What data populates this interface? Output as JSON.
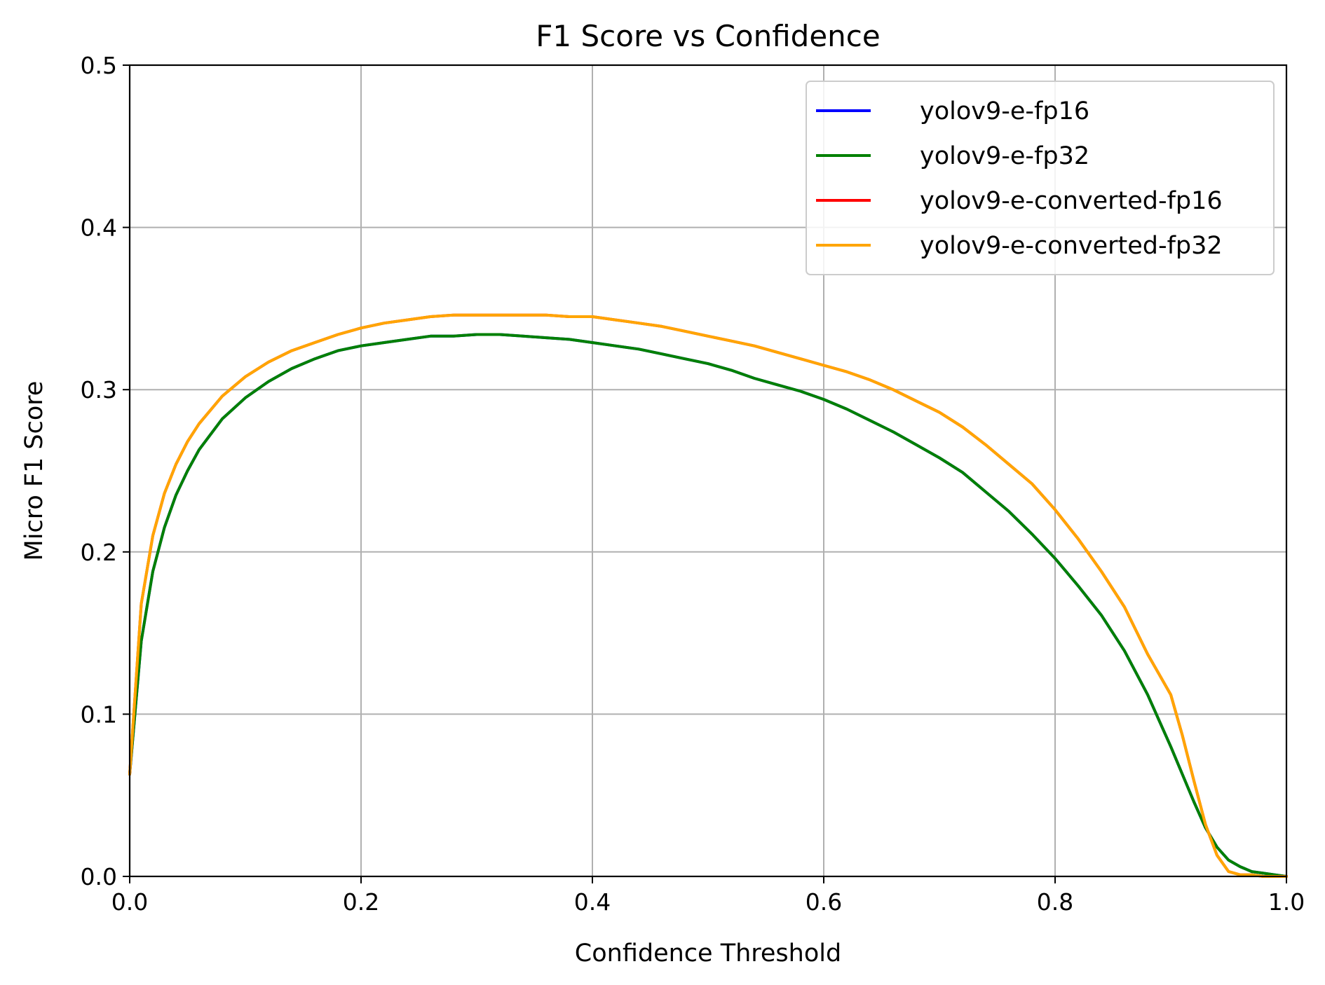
{
  "chart_data": {
    "type": "line",
    "title": "F1 Score vs Confidence",
    "xlabel": "Confidence Threshold",
    "ylabel": "Micro F1 Score",
    "xlim": [
      0.0,
      1.0
    ],
    "ylim": [
      0.0,
      0.5
    ],
    "x_ticks": [
      "0.0",
      "0.2",
      "0.4",
      "0.6",
      "0.8",
      "1.0"
    ],
    "y_ticks": [
      "0.0",
      "0.1",
      "0.2",
      "0.3",
      "0.4",
      "0.5"
    ],
    "grid": true,
    "legend_position": "top-right",
    "series": [
      {
        "name": "yolov9-e-fp16",
        "color": "#0000ff",
        "x": [
          0.0,
          0.01,
          0.02,
          0.03,
          0.04,
          0.05,
          0.06,
          0.08,
          0.1,
          0.12,
          0.14,
          0.16,
          0.18,
          0.2,
          0.22,
          0.24,
          0.26,
          0.28,
          0.3,
          0.32,
          0.34,
          0.36,
          0.38,
          0.4,
          0.42,
          0.44,
          0.46,
          0.48,
          0.5,
          0.52,
          0.54,
          0.56,
          0.58,
          0.6,
          0.62,
          0.64,
          0.66,
          0.68,
          0.7,
          0.72,
          0.74,
          0.76,
          0.78,
          0.8,
          0.82,
          0.84,
          0.86,
          0.88,
          0.9,
          0.91,
          0.92,
          0.93,
          0.94,
          0.95,
          0.96,
          0.97,
          0.98,
          0.99,
          1.0
        ],
        "y": [
          0.063,
          0.145,
          0.188,
          0.215,
          0.235,
          0.25,
          0.263,
          0.282,
          0.295,
          0.305,
          0.313,
          0.319,
          0.324,
          0.327,
          0.329,
          0.331,
          0.333,
          0.333,
          0.334,
          0.334,
          0.333,
          0.332,
          0.331,
          0.329,
          0.327,
          0.325,
          0.322,
          0.319,
          0.316,
          0.312,
          0.307,
          0.303,
          0.299,
          0.294,
          0.288,
          0.281,
          0.274,
          0.266,
          0.258,
          0.249,
          0.237,
          0.225,
          0.211,
          0.196,
          0.179,
          0.161,
          0.139,
          0.112,
          0.08,
          0.063,
          0.046,
          0.03,
          0.018,
          0.01,
          0.006,
          0.003,
          0.002,
          0.001,
          0.0
        ]
      },
      {
        "name": "yolov9-e-fp32",
        "color": "#008000",
        "x": [
          0.0,
          0.01,
          0.02,
          0.03,
          0.04,
          0.05,
          0.06,
          0.08,
          0.1,
          0.12,
          0.14,
          0.16,
          0.18,
          0.2,
          0.22,
          0.24,
          0.26,
          0.28,
          0.3,
          0.32,
          0.34,
          0.36,
          0.38,
          0.4,
          0.42,
          0.44,
          0.46,
          0.48,
          0.5,
          0.52,
          0.54,
          0.56,
          0.58,
          0.6,
          0.62,
          0.64,
          0.66,
          0.68,
          0.7,
          0.72,
          0.74,
          0.76,
          0.78,
          0.8,
          0.82,
          0.84,
          0.86,
          0.88,
          0.9,
          0.91,
          0.92,
          0.93,
          0.94,
          0.95,
          0.96,
          0.97,
          0.98,
          0.99,
          1.0
        ],
        "y": [
          0.063,
          0.145,
          0.188,
          0.215,
          0.235,
          0.25,
          0.263,
          0.282,
          0.295,
          0.305,
          0.313,
          0.319,
          0.324,
          0.327,
          0.329,
          0.331,
          0.333,
          0.333,
          0.334,
          0.334,
          0.333,
          0.332,
          0.331,
          0.329,
          0.327,
          0.325,
          0.322,
          0.319,
          0.316,
          0.312,
          0.307,
          0.303,
          0.299,
          0.294,
          0.288,
          0.281,
          0.274,
          0.266,
          0.258,
          0.249,
          0.237,
          0.225,
          0.211,
          0.196,
          0.179,
          0.161,
          0.139,
          0.112,
          0.08,
          0.063,
          0.046,
          0.03,
          0.018,
          0.01,
          0.006,
          0.003,
          0.002,
          0.001,
          0.0
        ]
      },
      {
        "name": "yolov9-e-converted-fp16",
        "color": "#ff0000",
        "x": [
          0.0,
          0.01,
          0.02,
          0.03,
          0.04,
          0.05,
          0.06,
          0.08,
          0.1,
          0.12,
          0.14,
          0.16,
          0.18,
          0.2,
          0.22,
          0.24,
          0.26,
          0.28,
          0.3,
          0.32,
          0.34,
          0.36,
          0.38,
          0.4,
          0.42,
          0.44,
          0.46,
          0.48,
          0.5,
          0.52,
          0.54,
          0.56,
          0.58,
          0.6,
          0.62,
          0.64,
          0.66,
          0.68,
          0.7,
          0.72,
          0.74,
          0.76,
          0.78,
          0.8,
          0.82,
          0.84,
          0.86,
          0.88,
          0.9,
          0.91,
          0.92,
          0.93,
          0.94,
          0.95,
          0.96,
          0.97,
          0.98,
          0.99,
          1.0
        ],
        "y": [
          0.063,
          0.168,
          0.21,
          0.236,
          0.254,
          0.268,
          0.279,
          0.296,
          0.308,
          0.317,
          0.324,
          0.329,
          0.334,
          0.338,
          0.341,
          0.343,
          0.345,
          0.346,
          0.346,
          0.346,
          0.346,
          0.346,
          0.345,
          0.345,
          0.343,
          0.341,
          0.339,
          0.336,
          0.333,
          0.33,
          0.327,
          0.323,
          0.319,
          0.315,
          0.311,
          0.306,
          0.3,
          0.293,
          0.286,
          0.277,
          0.266,
          0.254,
          0.242,
          0.226,
          0.208,
          0.188,
          0.166,
          0.137,
          0.112,
          0.087,
          0.059,
          0.032,
          0.013,
          0.003,
          0.001,
          0.001,
          0.0,
          0.0,
          0.0
        ]
      },
      {
        "name": "yolov9-e-converted-fp32",
        "color": "#ffa500",
        "x": [
          0.0,
          0.01,
          0.02,
          0.03,
          0.04,
          0.05,
          0.06,
          0.08,
          0.1,
          0.12,
          0.14,
          0.16,
          0.18,
          0.2,
          0.22,
          0.24,
          0.26,
          0.28,
          0.3,
          0.32,
          0.34,
          0.36,
          0.38,
          0.4,
          0.42,
          0.44,
          0.46,
          0.48,
          0.5,
          0.52,
          0.54,
          0.56,
          0.58,
          0.6,
          0.62,
          0.64,
          0.66,
          0.68,
          0.7,
          0.72,
          0.74,
          0.76,
          0.78,
          0.8,
          0.82,
          0.84,
          0.86,
          0.88,
          0.9,
          0.91,
          0.92,
          0.93,
          0.94,
          0.95,
          0.96,
          0.97,
          0.98,
          0.99,
          1.0
        ],
        "y": [
          0.063,
          0.168,
          0.21,
          0.236,
          0.254,
          0.268,
          0.279,
          0.296,
          0.308,
          0.317,
          0.324,
          0.329,
          0.334,
          0.338,
          0.341,
          0.343,
          0.345,
          0.346,
          0.346,
          0.346,
          0.346,
          0.346,
          0.345,
          0.345,
          0.343,
          0.341,
          0.339,
          0.336,
          0.333,
          0.33,
          0.327,
          0.323,
          0.319,
          0.315,
          0.311,
          0.306,
          0.3,
          0.293,
          0.286,
          0.277,
          0.266,
          0.254,
          0.242,
          0.226,
          0.208,
          0.188,
          0.166,
          0.137,
          0.112,
          0.087,
          0.059,
          0.032,
          0.013,
          0.003,
          0.001,
          0.001,
          0.0,
          0.0,
          0.0
        ]
      }
    ]
  }
}
